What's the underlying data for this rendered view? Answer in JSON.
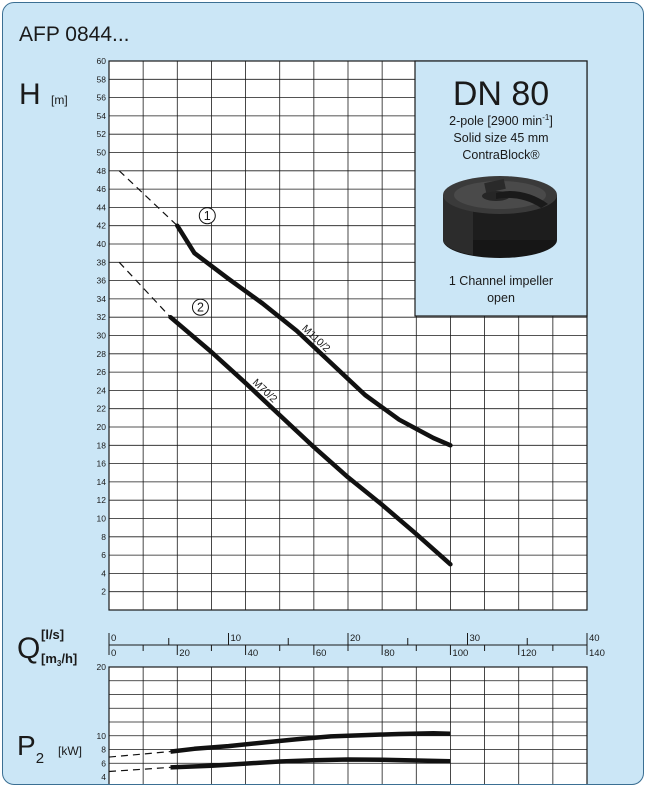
{
  "title": "AFP 0844...",
  "info_box": {
    "heading": "DN 80",
    "line1_prefix": "2-pole [2900 min",
    "line1_sup": "-1",
    "line1_suffix": "]",
    "line2": "Solid size 45 mm",
    "line3": "ContraBlock®",
    "line4": "1 Channel impeller",
    "line5": "open",
    "image_icon": "contrablock-impeller-icon"
  },
  "colors": {
    "background": "#cbe6f6",
    "border": "#3b6f93",
    "grid": "#1a1a1a",
    "curve": "#111111"
  },
  "chart_data": [
    {
      "type": "line",
      "id": "head",
      "ylabel": "H",
      "yunit": "[m]",
      "xlabel": "Q",
      "xunit_top": "[l/s]",
      "xunit_bottom": "[m3/h]",
      "xlim": [
        0,
        140
      ],
      "ylim": [
        0,
        60
      ],
      "y_ticks": [
        2,
        4,
        6,
        8,
        10,
        12,
        14,
        16,
        18,
        20,
        22,
        24,
        26,
        28,
        30,
        32,
        34,
        36,
        38,
        40,
        42,
        44,
        46,
        48,
        50,
        52,
        54,
        56,
        58,
        60
      ],
      "x_ticks_ls": [
        "0",
        "10",
        "20",
        "30",
        "40"
      ],
      "x_ticks_m3h": [
        "0",
        "20",
        "40",
        "60",
        "80",
        "100",
        "120",
        "140"
      ],
      "grid": true,
      "series": [
        {
          "name": "M110/2",
          "marker": "1",
          "x": [
            20,
            25,
            35,
            45,
            55,
            65,
            75,
            85,
            95,
            100
          ],
          "y": [
            42,
            39,
            36.2,
            33.5,
            30.5,
            27,
            23.5,
            20.8,
            18.8,
            18
          ]
        },
        {
          "name": "M70/2",
          "marker": "2",
          "x": [
            18,
            30,
            40,
            50,
            60,
            70,
            80,
            90,
            100
          ],
          "y": [
            32,
            28.2,
            24.8,
            21.3,
            17.8,
            14.5,
            11.5,
            8.3,
            5
          ]
        }
      ],
      "dashed_extensions": [
        {
          "x": [
            3,
            20
          ],
          "y": [
            48,
            42
          ]
        },
        {
          "x": [
            3,
            18
          ],
          "y": [
            38,
            32
          ]
        }
      ]
    },
    {
      "type": "line",
      "id": "power",
      "ylabel": "P",
      "ylabel_sub": "2",
      "yunit": "[kW]",
      "xlim": [
        0,
        140
      ],
      "ylim": [
        4,
        20
      ],
      "y_ticks": [
        "4",
        "6",
        "8",
        "10",
        "20"
      ],
      "grid": true,
      "series": [
        {
          "x": [
            18,
            25,
            35,
            45,
            55,
            65,
            75,
            85,
            95,
            100
          ],
          "y": [
            7.7,
            8.1,
            8.5,
            9.0,
            9.5,
            9.9,
            10.1,
            10.25,
            10.35,
            10.3
          ]
        },
        {
          "x": [
            18,
            30,
            40,
            50,
            60,
            70,
            80,
            90,
            100
          ],
          "y": [
            5.4,
            5.65,
            5.95,
            6.25,
            6.45,
            6.55,
            6.5,
            6.4,
            6.3
          ]
        }
      ],
      "dashed_extensions": [
        {
          "x": [
            0,
            18
          ],
          "y": [
            6.9,
            7.7
          ]
        },
        {
          "x": [
            0,
            18
          ],
          "y": [
            4.8,
            5.4
          ]
        }
      ]
    }
  ]
}
